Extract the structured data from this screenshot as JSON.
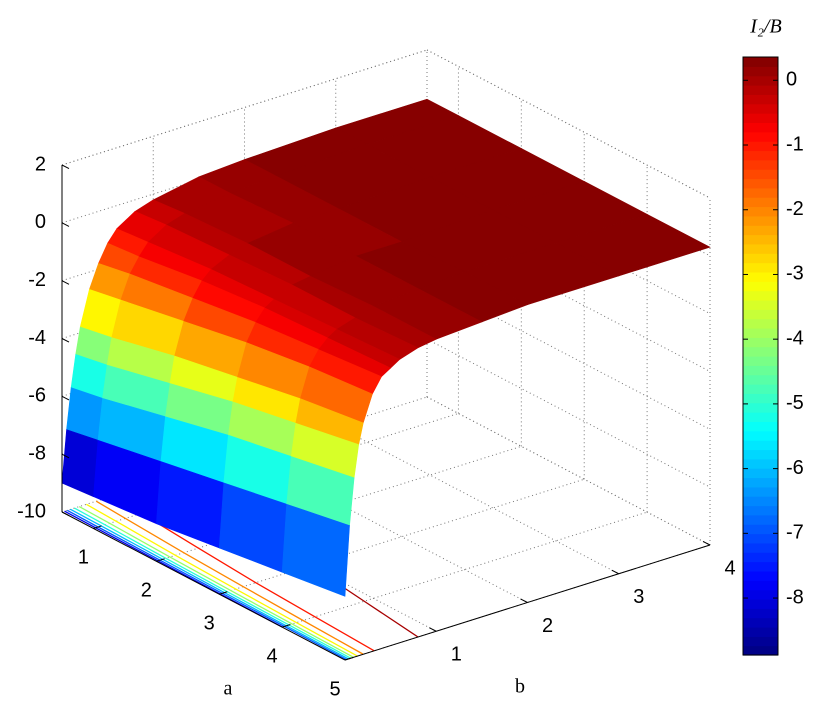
{
  "chart_data": {
    "type": "surface",
    "x_label": "a",
    "y_label": "b",
    "a": [
      0.5,
      1,
      2,
      3,
      4,
      5
    ],
    "b": [
      0,
      0.05,
      0.1,
      0.15,
      0.2,
      0.3,
      0.4,
      0.5,
      0.6,
      0.8,
      1,
      1.5,
      2,
      3,
      4
    ],
    "z": [
      [
        -9.0,
        -7.2,
        -5.8,
        -4.7,
        -3.8,
        -2.6,
        -1.8,
        -1.2,
        -0.8,
        -0.4,
        -0.2,
        0.1,
        0.2,
        0.3,
        0.3
      ],
      [
        -8.9,
        -7.0,
        -5.6,
        -4.5,
        -3.6,
        -2.4,
        -1.6,
        -1.1,
        -0.7,
        -0.3,
        -0.1,
        0.1,
        0.2,
        0.3,
        0.3
      ],
      [
        -8.7,
        -6.6,
        -5.1,
        -4.0,
        -3.1,
        -2.0,
        -1.3,
        -0.8,
        -0.5,
        -0.2,
        0,
        0.2,
        0.2,
        0.3,
        0.3
      ],
      [
        -8.4,
        -6.2,
        -4.6,
        -3.5,
        -2.7,
        -1.6,
        -1.0,
        -0.6,
        -0.4,
        -0.1,
        0,
        0.2,
        0.2,
        0.3,
        0.3
      ],
      [
        -8.1,
        -5.8,
        -4.2,
        -3.1,
        -2.3,
        -1.3,
        -0.8,
        -0.5,
        -0.3,
        -0.1,
        0.1,
        0.2,
        0.3,
        0.3,
        0.3
      ],
      [
        -7.8,
        -5.4,
        -3.8,
        -2.7,
        -2.0,
        -1.1,
        -0.6,
        -0.4,
        -0.2,
        0,
        0.1,
        0.2,
        0.3,
        0.3,
        0.3
      ]
    ],
    "alim": [
      0.5,
      5
    ],
    "blim": [
      0,
      4
    ],
    "zlim": [
      -10,
      2
    ],
    "aticks": [
      1,
      2,
      3,
      4,
      5
    ],
    "bticks": [
      1,
      2,
      3,
      4
    ],
    "zticks": [
      -10,
      -8,
      -6,
      -4,
      -2,
      0,
      2
    ],
    "grid": true,
    "colormap": "jet",
    "floor_contours": true,
    "colorbar": {
      "title": "I₂/B",
      "clim": [
        -8.88,
        0.36
      ],
      "ticks": [
        -8,
        -7,
        -6,
        -5,
        -4,
        -3,
        -2,
        -1,
        0
      ]
    }
  }
}
